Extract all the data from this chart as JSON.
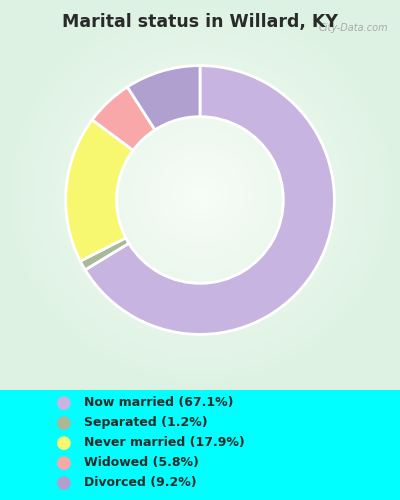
{
  "title": "Marital status in Willard, KY",
  "title_color": "#2a2a2a",
  "background_color": "#00FFFF",
  "slices": [
    {
      "label": "Now married (67.1%)",
      "value": 67.1,
      "color": "#c8b4e0"
    },
    {
      "label": "Separated (1.2%)",
      "value": 1.2,
      "color": "#a8b898"
    },
    {
      "label": "Never married (17.9%)",
      "value": 17.9,
      "color": "#f8f870"
    },
    {
      "label": "Widowed (5.8%)",
      "value": 5.8,
      "color": "#f8a8a8"
    },
    {
      "label": "Divorced (9.2%)",
      "value": 9.2,
      "color": "#b0a0d0"
    }
  ],
  "legend_text_color": "#2a2a2a",
  "watermark": "City-Data.com",
  "figsize": [
    4.0,
    5.0
  ],
  "dpi": 100
}
